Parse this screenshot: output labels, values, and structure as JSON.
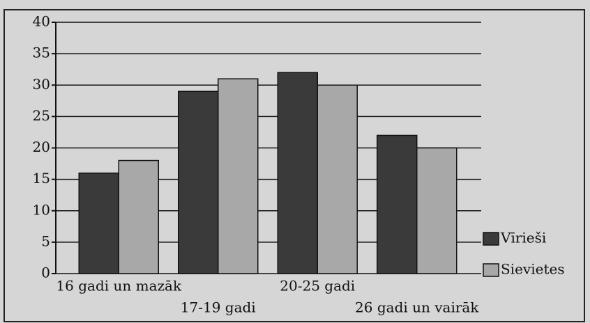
{
  "chart_data": {
    "type": "bar",
    "categories": [
      "16 gadi un mazāk",
      "17-19 gadi",
      "20-25 gadi",
      "26 gadi un vairāk"
    ],
    "series": [
      {
        "name": "Vīrieši",
        "color": "#3a3a3a",
        "values": [
          16,
          29,
          32,
          22
        ]
      },
      {
        "name": "Sievietes",
        "color": "#a8a8a8",
        "values": [
          18,
          31,
          30,
          20
        ]
      }
    ],
    "ylim": [
      0,
      40
    ],
    "yticks": [
      0,
      5,
      10,
      15,
      20,
      25,
      30,
      35,
      40
    ],
    "grid": true,
    "legend": "right"
  }
}
